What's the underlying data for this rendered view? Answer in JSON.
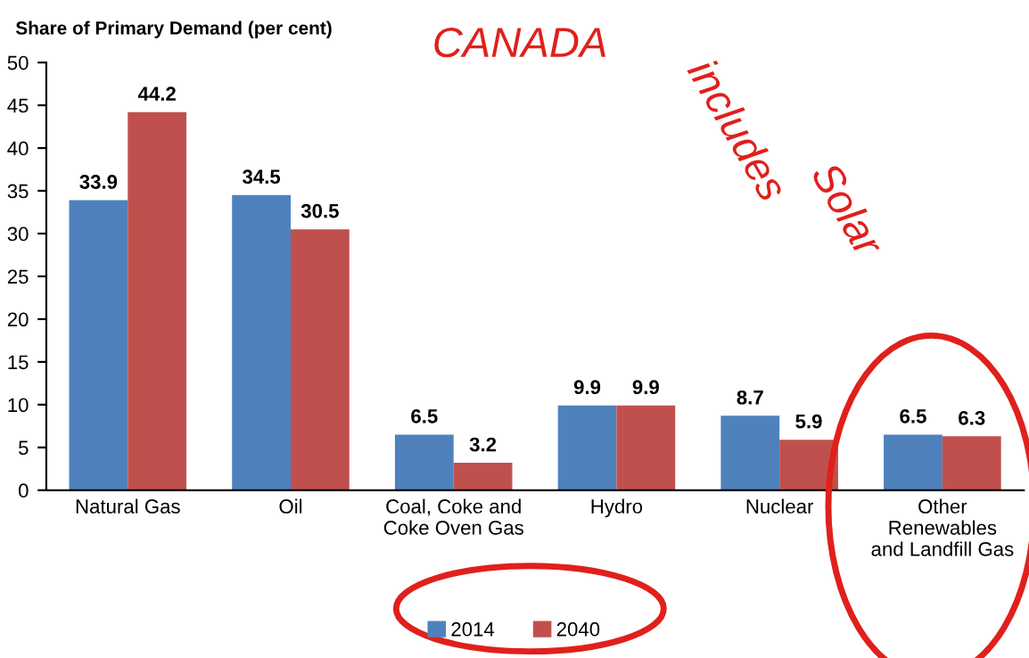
{
  "chart_data": {
    "type": "bar",
    "title": "Share of Primary Demand (per cent)",
    "categories": [
      "Natural Gas",
      "Oil",
      "Coal, Coke and\nCoke Oven Gas",
      "Hydro",
      "Nuclear",
      "Other\nRenewables\nand Landfill Gas"
    ],
    "series": [
      {
        "name": "2014",
        "color": "#4f81bd",
        "values": [
          33.9,
          34.5,
          6.5,
          9.9,
          8.7,
          6.5
        ]
      },
      {
        "name": "2040",
        "color": "#c0504d",
        "values": [
          44.2,
          30.5,
          3.2,
          9.9,
          5.9,
          6.3
        ]
      }
    ],
    "ylim": [
      0,
      50
    ],
    "yticks": [
      0,
      5,
      10,
      15,
      20,
      25,
      30,
      35,
      40,
      45,
      50
    ],
    "data_labels": true,
    "legend": "bottom",
    "grid": false,
    "annotations": [
      "CANADA",
      "includes",
      "Solar"
    ]
  }
}
